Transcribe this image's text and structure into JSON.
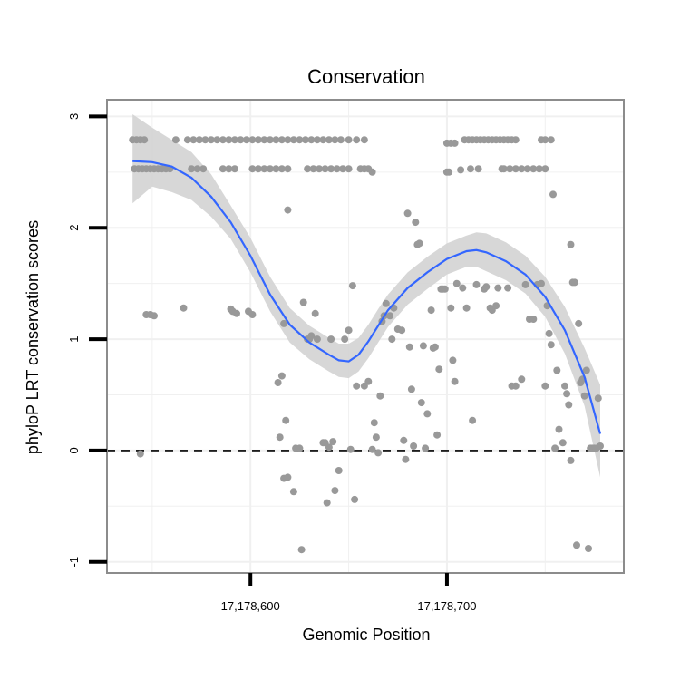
{
  "chart_data": {
    "type": "scatter",
    "title": "Conservation",
    "xlabel": "Genomic Position",
    "ylabel": "phyloP LRT conservation scores",
    "xlim": [
      17178527,
      17178790
    ],
    "ylim": [
      -1.1,
      3.15
    ],
    "x_ticks": [
      {
        "value": 17178600,
        "label": "17,178,600"
      },
      {
        "value": 17178700,
        "label": "17,178,700"
      }
    ],
    "y_ticks": [
      {
        "value": -1,
        "label": "-1"
      },
      {
        "value": 0,
        "label": "0"
      },
      {
        "value": 1,
        "label": "1"
      },
      {
        "value": 2,
        "label": "2"
      },
      {
        "value": 3,
        "label": "3"
      }
    ],
    "reference_line": {
      "y": 0,
      "style": "dashed"
    },
    "grid": true,
    "colors": {
      "points": "#999999",
      "smooth": "#3366ff",
      "band": "#d3d3d3",
      "panel_border": "#8c8c8c",
      "grid": "#f0f0f0"
    },
    "points": [
      [
        17178540,
        2.79
      ],
      [
        17178542,
        2.79
      ],
      [
        17178544,
        2.79
      ],
      [
        17178546,
        2.79
      ],
      [
        17178541,
        2.53
      ],
      [
        17178543,
        2.53
      ],
      [
        17178545,
        2.53
      ],
      [
        17178547,
        2.53
      ],
      [
        17178549,
        2.53
      ],
      [
        17178551,
        2.53
      ],
      [
        17178553,
        2.53
      ],
      [
        17178555,
        2.53
      ],
      [
        17178544,
        -0.03
      ],
      [
        17178547,
        1.22
      ],
      [
        17178549,
        1.22
      ],
      [
        17178551,
        1.21
      ],
      [
        17178557,
        2.53
      ],
      [
        17178559,
        2.53
      ],
      [
        17178562,
        2.79
      ],
      [
        17178566,
        1.28
      ],
      [
        17178568,
        2.79
      ],
      [
        17178571,
        2.79
      ],
      [
        17178574,
        2.79
      ],
      [
        17178577,
        2.79
      ],
      [
        17178580,
        2.79
      ],
      [
        17178583,
        2.79
      ],
      [
        17178586,
        2.79
      ],
      [
        17178589,
        2.79
      ],
      [
        17178592,
        2.79
      ],
      [
        17178595,
        2.79
      ],
      [
        17178598,
        2.79
      ],
      [
        17178601,
        2.79
      ],
      [
        17178604,
        2.79
      ],
      [
        17178607,
        2.79
      ],
      [
        17178610,
        2.79
      ],
      [
        17178613,
        2.79
      ],
      [
        17178616,
        2.79
      ],
      [
        17178619,
        2.79
      ],
      [
        17178622,
        2.79
      ],
      [
        17178625,
        2.79
      ],
      [
        17178628,
        2.79
      ],
      [
        17178631,
        2.79
      ],
      [
        17178634,
        2.79
      ],
      [
        17178637,
        2.79
      ],
      [
        17178640,
        2.79
      ],
      [
        17178643,
        2.79
      ],
      [
        17178646,
        2.79
      ],
      [
        17178650,
        2.79
      ],
      [
        17178654,
        2.79
      ],
      [
        17178658,
        2.79
      ],
      [
        17178570,
        2.53
      ],
      [
        17178573,
        2.53
      ],
      [
        17178576,
        2.53
      ],
      [
        17178586,
        2.53
      ],
      [
        17178589,
        2.53
      ],
      [
        17178592,
        2.53
      ],
      [
        17178601,
        2.53
      ],
      [
        17178604,
        2.53
      ],
      [
        17178607,
        2.53
      ],
      [
        17178610,
        2.53
      ],
      [
        17178613,
        2.53
      ],
      [
        17178616,
        2.53
      ],
      [
        17178619,
        2.53
      ],
      [
        17178629,
        2.53
      ],
      [
        17178632,
        2.53
      ],
      [
        17178635,
        2.53
      ],
      [
        17178638,
        2.53
      ],
      [
        17178641,
        2.53
      ],
      [
        17178644,
        2.53
      ],
      [
        17178647,
        2.53
      ],
      [
        17178650,
        2.53
      ],
      [
        17178590,
        1.27
      ],
      [
        17178591,
        1.25
      ],
      [
        17178593,
        1.23
      ],
      [
        17178599,
        1.25
      ],
      [
        17178601,
        1.22
      ],
      [
        17178614,
        0.61
      ],
      [
        17178615,
        0.12
      ],
      [
        17178616,
        0.67
      ],
      [
        17178618,
        0.27
      ],
      [
        17178619,
        2.16
      ],
      [
        17178617,
        1.14
      ],
      [
        17178617,
        -0.25
      ],
      [
        17178619,
        -0.24
      ],
      [
        17178622,
        -0.37
      ],
      [
        17178623,
        0.02
      ],
      [
        17178625,
        0.02
      ],
      [
        17178626,
        -0.89
      ],
      [
        17178627,
        1.33
      ],
      [
        17178629,
        1.0
      ],
      [
        17178630,
        1.0
      ],
      [
        17178631,
        1.03
      ],
      [
        17178633,
        1.23
      ],
      [
        17178634,
        1.0
      ],
      [
        17178637,
        0.07
      ],
      [
        17178638,
        0.07
      ],
      [
        17178639,
        -0.47
      ],
      [
        17178640,
        0.03
      ],
      [
        17178641,
        1.0
      ],
      [
        17178642,
        0.08
      ],
      [
        17178643,
        -0.36
      ],
      [
        17178645,
        -0.18
      ],
      [
        17178648,
        1.0
      ],
      [
        17178650,
        1.08
      ],
      [
        17178651,
        0.01
      ],
      [
        17178652,
        1.48
      ],
      [
        17178653,
        -0.44
      ],
      [
        17178654,
        0.58
      ],
      [
        17178656,
        2.53
      ],
      [
        17178658,
        2.53
      ],
      [
        17178660,
        2.53
      ],
      [
        17178662,
        2.5
      ],
      [
        17178658,
        0.58
      ],
      [
        17178660,
        0.62
      ],
      [
        17178662,
        0.01
      ],
      [
        17178663,
        0.25
      ],
      [
        17178664,
        0.12
      ],
      [
        17178665,
        -0.02
      ],
      [
        17178666,
        0.49
      ],
      [
        17178667,
        1.16
      ],
      [
        17178668,
        1.21
      ],
      [
        17178669,
        1.32
      ],
      [
        17178671,
        1.21
      ],
      [
        17178672,
        1.0
      ],
      [
        17178673,
        1.28
      ],
      [
        17178675,
        1.09
      ],
      [
        17178677,
        1.08
      ],
      [
        17178678,
        0.09
      ],
      [
        17178679,
        -0.08
      ],
      [
        17178680,
        2.13
      ],
      [
        17178681,
        0.93
      ],
      [
        17178682,
        0.55
      ],
      [
        17178683,
        0.04
      ],
      [
        17178684,
        2.05
      ],
      [
        17178685,
        1.85
      ],
      [
        17178686,
        1.86
      ],
      [
        17178687,
        0.43
      ],
      [
        17178688,
        0.94
      ],
      [
        17178689,
        0.02
      ],
      [
        17178690,
        0.33
      ],
      [
        17178692,
        1.26
      ],
      [
        17178693,
        0.92
      ],
      [
        17178694,
        0.93
      ],
      [
        17178695,
        0.14
      ],
      [
        17178696,
        0.73
      ],
      [
        17178697,
        1.45
      ],
      [
        17178698,
        1.45
      ],
      [
        17178699,
        1.45
      ],
      [
        17178700,
        2.5
      ],
      [
        17178701,
        2.5
      ],
      [
        17178700,
        2.76
      ],
      [
        17178702,
        2.76
      ],
      [
        17178704,
        2.76
      ],
      [
        17178702,
        1.28
      ],
      [
        17178703,
        0.81
      ],
      [
        17178704,
        0.62
      ],
      [
        17178705,
        1.5
      ],
      [
        17178707,
        2.52
      ],
      [
        17178709,
        2.79
      ],
      [
        17178711,
        2.79
      ],
      [
        17178713,
        2.79
      ],
      [
        17178715,
        2.79
      ],
      [
        17178717,
        2.79
      ],
      [
        17178719,
        2.79
      ],
      [
        17178721,
        2.79
      ],
      [
        17178723,
        2.79
      ],
      [
        17178725,
        2.79
      ],
      [
        17178727,
        2.79
      ],
      [
        17178729,
        2.79
      ],
      [
        17178731,
        2.79
      ],
      [
        17178733,
        2.79
      ],
      [
        17178735,
        2.79
      ],
      [
        17178708,
        1.46
      ],
      [
        17178710,
        1.28
      ],
      [
        17178712,
        2.53
      ],
      [
        17178713,
        0.27
      ],
      [
        17178715,
        1.49
      ],
      [
        17178716,
        2.53
      ],
      [
        17178719,
        1.45
      ],
      [
        17178720,
        1.47
      ],
      [
        17178722,
        1.28
      ],
      [
        17178723,
        1.26
      ],
      [
        17178725,
        1.3
      ],
      [
        17178726,
        1.46
      ],
      [
        17178728,
        2.53
      ],
      [
        17178731,
        1.46
      ],
      [
        17178733,
        0.58
      ],
      [
        17178735,
        0.58
      ],
      [
        17178729,
        2.53
      ],
      [
        17178732,
        2.53
      ],
      [
        17178735,
        2.53
      ],
      [
        17178738,
        2.53
      ],
      [
        17178741,
        2.53
      ],
      [
        17178744,
        2.53
      ],
      [
        17178747,
        2.53
      ],
      [
        17178750,
        2.53
      ],
      [
        17178738,
        0.64
      ],
      [
        17178740,
        1.49
      ],
      [
        17178742,
        1.18
      ],
      [
        17178744,
        1.18
      ],
      [
        17178746,
        1.49
      ],
      [
        17178748,
        1.5
      ],
      [
        17178750,
        0.58
      ],
      [
        17178751,
        1.3
      ],
      [
        17178752,
        1.05
      ],
      [
        17178753,
        0.95
      ],
      [
        17178748,
        2.79
      ],
      [
        17178750,
        2.79
      ],
      [
        17178753,
        2.79
      ],
      [
        17178754,
        2.3
      ],
      [
        17178755,
        0.02
      ],
      [
        17178756,
        0.72
      ],
      [
        17178757,
        0.19
      ],
      [
        17178759,
        0.07
      ],
      [
        17178760,
        0.58
      ],
      [
        17178761,
        0.51
      ],
      [
        17178762,
        0.41
      ],
      [
        17178763,
        1.85
      ],
      [
        17178763,
        -0.09
      ],
      [
        17178764,
        1.51
      ],
      [
        17178765,
        1.51
      ],
      [
        17178766,
        -0.85
      ],
      [
        17178767,
        1.14
      ],
      [
        17178768,
        0.61
      ],
      [
        17178769,
        0.64
      ],
      [
        17178770,
        0.49
      ],
      [
        17178771,
        0.72
      ],
      [
        17178772,
        -0.88
      ],
      [
        17178773,
        0.02
      ],
      [
        17178774,
        0.02
      ],
      [
        17178775,
        0.02
      ],
      [
        17178776,
        0.02
      ],
      [
        17178777,
        0.47
      ],
      [
        17178778,
        0.04
      ]
    ],
    "smooth": {
      "x": [
        17178540,
        17178550,
        17178560,
        17178570,
        17178580,
        17178590,
        17178600,
        17178610,
        17178620,
        17178630,
        17178640,
        17178645,
        17178650,
        17178655,
        17178660,
        17178665,
        17178670,
        17178680,
        17178690,
        17178700,
        17178710,
        17178715,
        17178720,
        17178730,
        17178740,
        17178750,
        17178760,
        17178770,
        17178778
      ],
      "y": [
        2.6,
        2.59,
        2.55,
        2.45,
        2.28,
        2.05,
        1.75,
        1.4,
        1.13,
        0.97,
        0.86,
        0.81,
        0.8,
        0.86,
        0.98,
        1.12,
        1.26,
        1.46,
        1.6,
        1.72,
        1.79,
        1.8,
        1.78,
        1.7,
        1.58,
        1.38,
        1.08,
        0.66,
        0.15
      ],
      "upper": [
        3.02,
        2.9,
        2.79,
        2.68,
        2.48,
        2.2,
        1.91,
        1.56,
        1.28,
        1.12,
        1.01,
        0.96,
        0.96,
        1.01,
        1.13,
        1.27,
        1.4,
        1.6,
        1.74,
        1.86,
        1.93,
        1.96,
        1.95,
        1.87,
        1.75,
        1.56,
        1.29,
        0.92,
        0.59
      ],
      "lower": [
        2.22,
        2.37,
        2.32,
        2.25,
        2.1,
        1.9,
        1.6,
        1.25,
        0.97,
        0.82,
        0.71,
        0.66,
        0.65,
        0.71,
        0.83,
        0.97,
        1.11,
        1.31,
        1.45,
        1.58,
        1.65,
        1.65,
        1.61,
        1.53,
        1.41,
        1.2,
        0.87,
        0.4,
        -0.24
      ]
    }
  }
}
